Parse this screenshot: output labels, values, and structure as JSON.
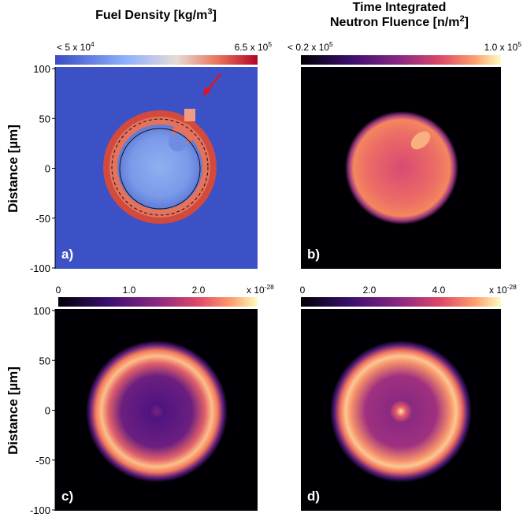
{
  "y_axis": {
    "label": "Distance [µm]",
    "ticks": [
      "100",
      "50",
      "0",
      "-50",
      "-100"
    ]
  },
  "panels": [
    {
      "label": "a)",
      "title": [
        {
          "text": "Fuel Density [kg/m",
          "sup": "3",
          "after": "]"
        }
      ],
      "colorbar": [
        {
          "text": "< 5 x 10",
          "sup": "4"
        },
        {
          "text": "6.5 x 10",
          "sup": "5"
        }
      ]
    },
    {
      "label": "b)",
      "title": [
        {
          "text": "Time Integrated"
        },
        {
          "text": "Neutron Fluence [n/m",
          "sup": "2",
          "after": "]"
        }
      ],
      "colorbar": [
        {
          "text": "< 0.2 x 10",
          "sup": "5"
        },
        {
          "text": "1.0 x 10",
          "sup": "5"
        }
      ]
    },
    {
      "label": "c)",
      "colorbar": [
        {
          "text": "0"
        },
        {
          "text": "1.0"
        },
        {
          "text": "2.0"
        },
        {
          "text": "x 10",
          "sup": "-28"
        }
      ]
    },
    {
      "label": "d)",
      "colorbar": [
        {
          "text": "0"
        },
        {
          "text": "2.0"
        },
        {
          "text": "4.0"
        },
        {
          "text": "x 10",
          "sup": "-28"
        }
      ]
    }
  ]
}
